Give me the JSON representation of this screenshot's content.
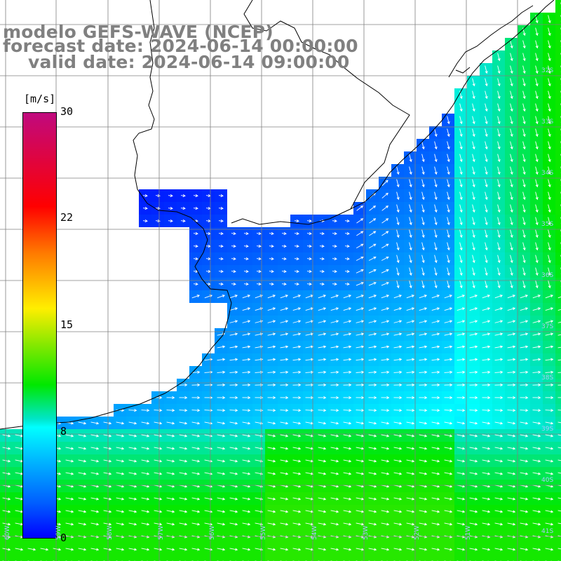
{
  "title": {
    "line1": "modelo GEFS-WAVE (NCEP)",
    "line2": "forecast date: 2024-06-14 00:00:00",
    "line3": "valid date: 2024-06-14 09:00:00"
  },
  "colorbar": {
    "unit": "[m/s]",
    "ticks": [
      {
        "label": "30",
        "value": 30
      },
      {
        "label": "22",
        "value": 22
      },
      {
        "label": "15",
        "value": 15
      },
      {
        "label": "8",
        "value": 8
      },
      {
        "label": "0",
        "value": 0
      }
    ],
    "colors": [
      "#c0097e",
      "#ff0000",
      "#ff7a00",
      "#ffee00",
      "#00e800",
      "#00ffff",
      "#00b5ff",
      "#0000ff"
    ]
  },
  "map": {
    "land_color": "#ffffff",
    "grid_color": "#808080",
    "lat_labels": [
      "32S",
      "33S",
      "34S",
      "35S",
      "36S",
      "37S",
      "38S",
      "39S",
      "40S",
      "41S"
    ],
    "lon_labels": [
      "60W",
      "59W",
      "58W",
      "57W",
      "56W",
      "55W",
      "54W",
      "53W",
      "52W",
      "51W"
    ]
  }
}
